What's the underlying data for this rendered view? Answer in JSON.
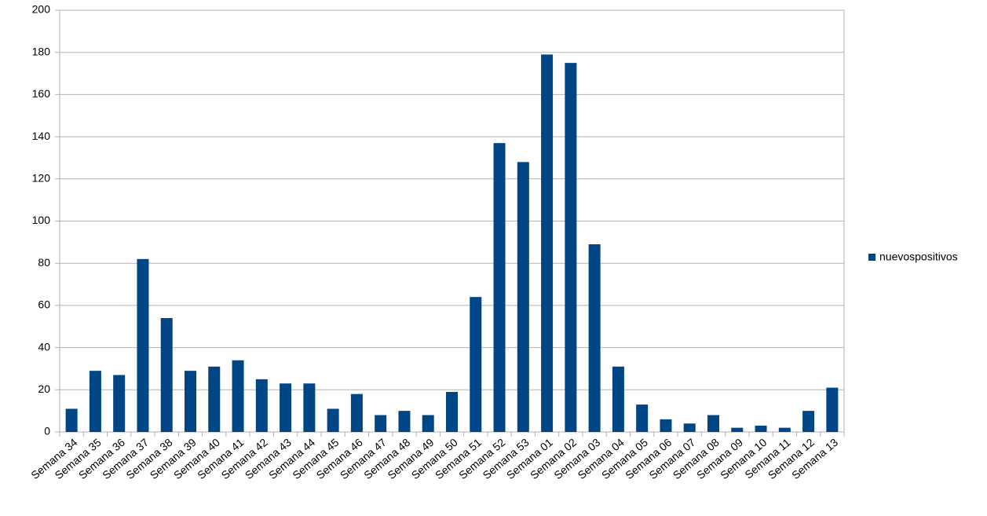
{
  "chart_data": {
    "type": "bar",
    "categories": [
      "Semana 34",
      "Semana 35",
      "Semana 36",
      "Semana 37",
      "Semana 38",
      "Semana 39",
      "Semana 40",
      "Semana 41",
      "Semana 42",
      "Semana 43",
      "Semana 44",
      "Semana 45",
      "Semana 46",
      "Semana 47",
      "Semana 48",
      "Semana 49",
      "Semana 50",
      "Semana 51",
      "Semana 52",
      "Semana 53",
      "Semana 01",
      "Semana 02",
      "Semana 03",
      "Semana 04",
      "Semana 05",
      "Semana 06",
      "Semana 07",
      "Semana 08",
      "Semana 09",
      "Semana 10",
      "Semana 11",
      "Semana 12",
      "Semana 13"
    ],
    "series": [
      {
        "name": "nuevospositivos",
        "color": "#004586",
        "values": [
          11,
          29,
          27,
          82,
          54,
          29,
          31,
          34,
          25,
          23,
          23,
          11,
          18,
          8,
          10,
          8,
          19,
          64,
          137,
          128,
          179,
          175,
          89,
          31,
          13,
          6,
          4,
          8,
          2,
          3,
          2,
          10,
          21
        ]
      }
    ],
    "ylim": [
      0,
      200
    ],
    "yticks": [
      0,
      20,
      40,
      60,
      80,
      100,
      120,
      140,
      160,
      180,
      200
    ],
    "grid": true,
    "legend": "right"
  }
}
